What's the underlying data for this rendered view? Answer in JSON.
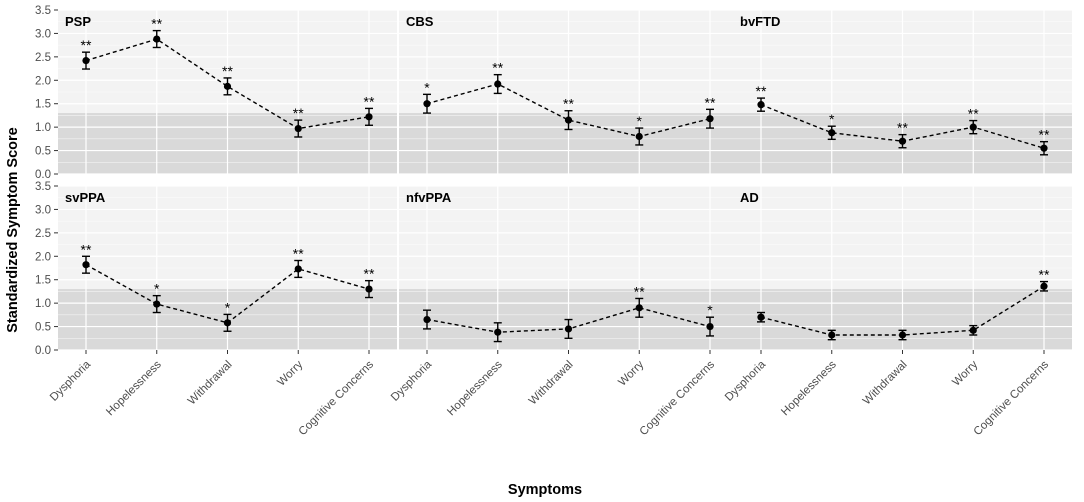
{
  "chart_data": {
    "type": "line",
    "xlabel": "Symptoms",
    "ylabel": "Standardized Symptom Score",
    "ylim": [
      0,
      3.5
    ],
    "yticks": [
      "0.0",
      "0.5",
      "1.0",
      "1.5",
      "2.0",
      "2.5",
      "3.0",
      "3.5"
    ],
    "categories": [
      "Dysphoria",
      "Hopelessness",
      "Withdrawal",
      "Worry",
      "Cognitive Concerns"
    ],
    "reference_band": [
      0,
      1.3
    ],
    "panels": [
      {
        "title": "PSP",
        "values": [
          2.42,
          2.88,
          1.87,
          0.97,
          1.22
        ],
        "lower": [
          2.24,
          2.7,
          1.69,
          0.79,
          1.04
        ],
        "upper": [
          2.6,
          3.06,
          2.05,
          1.15,
          1.4
        ],
        "significance": [
          "**",
          "**",
          "**",
          "**",
          "**"
        ]
      },
      {
        "title": "CBS",
        "values": [
          1.5,
          1.92,
          1.15,
          0.8,
          1.18
        ],
        "lower": [
          1.3,
          1.72,
          0.95,
          0.62,
          0.98
        ],
        "upper": [
          1.7,
          2.12,
          1.35,
          0.98,
          1.38
        ],
        "significance": [
          "*",
          "**",
          "**",
          "*",
          "**"
        ]
      },
      {
        "title": "bvFTD",
        "values": [
          1.48,
          0.88,
          0.7,
          1.0,
          0.55
        ],
        "lower": [
          1.34,
          0.74,
          0.56,
          0.86,
          0.41
        ],
        "upper": [
          1.62,
          1.02,
          0.84,
          1.14,
          0.69
        ],
        "significance": [
          "**",
          "*",
          "**",
          "**",
          "**"
        ]
      },
      {
        "title": "svPPA",
        "values": [
          1.82,
          0.98,
          0.58,
          1.73,
          1.3
        ],
        "lower": [
          1.64,
          0.8,
          0.4,
          1.55,
          1.12
        ],
        "upper": [
          2.0,
          1.16,
          0.76,
          1.91,
          1.48
        ],
        "significance": [
          "**",
          "*",
          "*",
          "**",
          "**"
        ]
      },
      {
        "title": "nfvPPA",
        "values": [
          0.65,
          0.38,
          0.45,
          0.9,
          0.5
        ],
        "lower": [
          0.45,
          0.18,
          0.25,
          0.7,
          0.3
        ],
        "upper": [
          0.85,
          0.58,
          0.65,
          1.1,
          0.7
        ],
        "significance": [
          "",
          "",
          "",
          "**",
          "*"
        ]
      },
      {
        "title": "AD",
        "values": [
          0.7,
          0.32,
          0.32,
          0.42,
          1.36
        ],
        "lower": [
          0.6,
          0.22,
          0.22,
          0.32,
          1.26
        ],
        "upper": [
          0.8,
          0.42,
          0.42,
          0.52,
          1.46
        ],
        "significance": [
          "",
          "",
          "",
          "",
          "**"
        ]
      }
    ]
  }
}
